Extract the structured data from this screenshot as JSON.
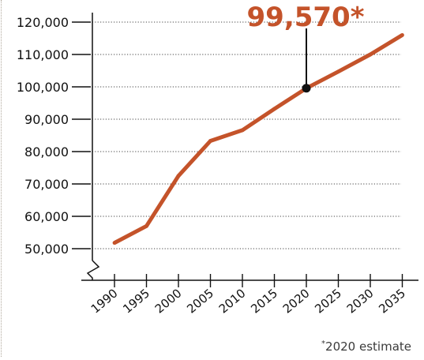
{
  "chart_data": {
    "type": "line",
    "title": "",
    "xlabel": "",
    "ylabel": "",
    "x": [
      1990,
      1995,
      2000,
      2005,
      2010,
      2015,
      2020,
      2025,
      2030,
      2035
    ],
    "x_tick_labels": [
      "1990",
      "1995",
      "2000",
      "2005",
      "2010",
      "2015",
      "2020",
      "2025",
      "2030",
      "2035"
    ],
    "y_tick_values": [
      50000,
      60000,
      70000,
      80000,
      90000,
      100000,
      110000,
      120000
    ],
    "y_tick_labels": [
      "50,000",
      "60,000",
      "70,000",
      "80,000",
      "90,000",
      "100,000",
      "110,000",
      "120,000"
    ],
    "ylim": [
      50000,
      120000
    ],
    "y_axis_break": true,
    "grid": "horizontal-dotted",
    "series": [
      {
        "color": "#c4532a",
        "points": [
          {
            "x": 1990,
            "y": 51800
          },
          {
            "x": 1995,
            "y": 57000
          },
          {
            "x": 2000,
            "y": 72500
          },
          {
            "x": 2005,
            "y": 83300
          },
          {
            "x": 2010,
            "y": 86600
          },
          {
            "x": 2015,
            "y": 93200
          },
          {
            "x": 2020,
            "y": 99570
          },
          {
            "x": 2025,
            "y": 104700
          },
          {
            "x": 2030,
            "y": 110000
          },
          {
            "x": 2035,
            "y": 116000
          }
        ]
      }
    ],
    "annotation": {
      "x": 2020,
      "y": 99570,
      "label": "99,570*",
      "color": "#c4532a"
    },
    "footnote": {
      "marker": "*",
      "text": "2020 estimate"
    }
  }
}
